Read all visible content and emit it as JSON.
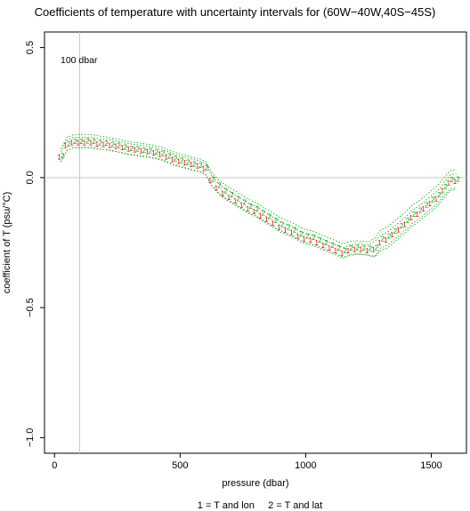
{
  "chart_data": {
    "type": "line",
    "title": "Coefficients of temperature with uncertainty intervals for (60W−40W,40S−45S)",
    "xlabel": "pressure (dbar)",
    "ylabel": "coefficient of T (psu/°C)",
    "xlim": [
      -40,
      1640
    ],
    "ylim": [
      -1.06,
      0.56
    ],
    "xticks": [
      0,
      500,
      1000,
      1500
    ],
    "xtick_labels": [
      "0",
      "500",
      "1000",
      "1500"
    ],
    "yticks": [
      -1.0,
      -0.5,
      0.0,
      0.5
    ],
    "ytick_labels": [
      "−1.0",
      "−0.5",
      "0.0",
      "0.5"
    ],
    "reference_hline": 0.0,
    "reference_vline": 100,
    "annotation": "100 dbar",
    "legend": "1 = T and lon     2 = T and lat",
    "series": [
      {
        "marker": "1",
        "color": "#e8000b",
        "x": [
          25,
          50,
          75,
          100,
          125,
          150,
          175,
          200,
          225,
          250,
          275,
          300,
          325,
          350,
          375,
          400,
          425,
          450,
          475,
          500,
          525,
          550,
          575,
          600,
          625,
          650,
          675,
          700,
          725,
          750,
          775,
          800,
          825,
          850,
          875,
          900,
          925,
          950,
          975,
          1000,
          1025,
          1050,
          1075,
          1100,
          1125,
          1150,
          1175,
          1200,
          1225,
          1250,
          1275,
          1300,
          1325,
          1350,
          1375,
          1400,
          1425,
          1450,
          1475,
          1500,
          1525,
          1550,
          1575,
          1600
        ],
        "y": [
          0.08,
          0.125,
          0.135,
          0.135,
          0.135,
          0.135,
          0.13,
          0.128,
          0.125,
          0.12,
          0.115,
          0.11,
          0.107,
          0.103,
          0.1,
          0.095,
          0.09,
          0.08,
          0.07,
          0.063,
          0.057,
          0.05,
          0.045,
          0.035,
          -0.01,
          -0.04,
          -0.06,
          -0.075,
          -0.09,
          -0.105,
          -0.12,
          -0.13,
          -0.145,
          -0.16,
          -0.175,
          -0.19,
          -0.2,
          -0.21,
          -0.225,
          -0.235,
          -0.24,
          -0.25,
          -0.26,
          -0.27,
          -0.28,
          -0.29,
          -0.28,
          -0.275,
          -0.275,
          -0.28,
          -0.275,
          -0.25,
          -0.24,
          -0.22,
          -0.2,
          -0.18,
          -0.155,
          -0.14,
          -0.12,
          -0.1,
          -0.08,
          -0.05,
          -0.02,
          -0.015
        ]
      },
      {
        "marker": "2",
        "color": "#00a000",
        "x": [
          25,
          50,
          75,
          100,
          125,
          150,
          175,
          200,
          225,
          250,
          275,
          300,
          325,
          350,
          375,
          400,
          425,
          450,
          475,
          500,
          525,
          550,
          575,
          600,
          625,
          650,
          675,
          700,
          725,
          750,
          775,
          800,
          825,
          850,
          875,
          900,
          925,
          950,
          975,
          1000,
          1025,
          1050,
          1075,
          1100,
          1125,
          1150,
          1175,
          1200,
          1225,
          1250,
          1275,
          1300,
          1325,
          1350,
          1375,
          1400,
          1425,
          1450,
          1475,
          1500,
          1525,
          1550,
          1575,
          1600
        ],
        "y": [
          0.085,
          0.13,
          0.14,
          0.14,
          0.142,
          0.14,
          0.135,
          0.132,
          0.128,
          0.124,
          0.118,
          0.113,
          0.11,
          0.106,
          0.103,
          0.098,
          0.093,
          0.083,
          0.073,
          0.066,
          0.06,
          0.053,
          0.048,
          0.038,
          -0.005,
          -0.03,
          -0.05,
          -0.065,
          -0.08,
          -0.095,
          -0.11,
          -0.12,
          -0.135,
          -0.15,
          -0.165,
          -0.18,
          -0.19,
          -0.2,
          -0.215,
          -0.225,
          -0.23,
          -0.24,
          -0.25,
          -0.26,
          -0.27,
          -0.28,
          -0.27,
          -0.268,
          -0.27,
          -0.272,
          -0.268,
          -0.235,
          -0.225,
          -0.205,
          -0.185,
          -0.165,
          -0.14,
          -0.125,
          -0.105,
          -0.085,
          -0.065,
          -0.035,
          -0.008,
          -0.005
        ]
      }
    ],
    "interval_color": "#00a000"
  }
}
